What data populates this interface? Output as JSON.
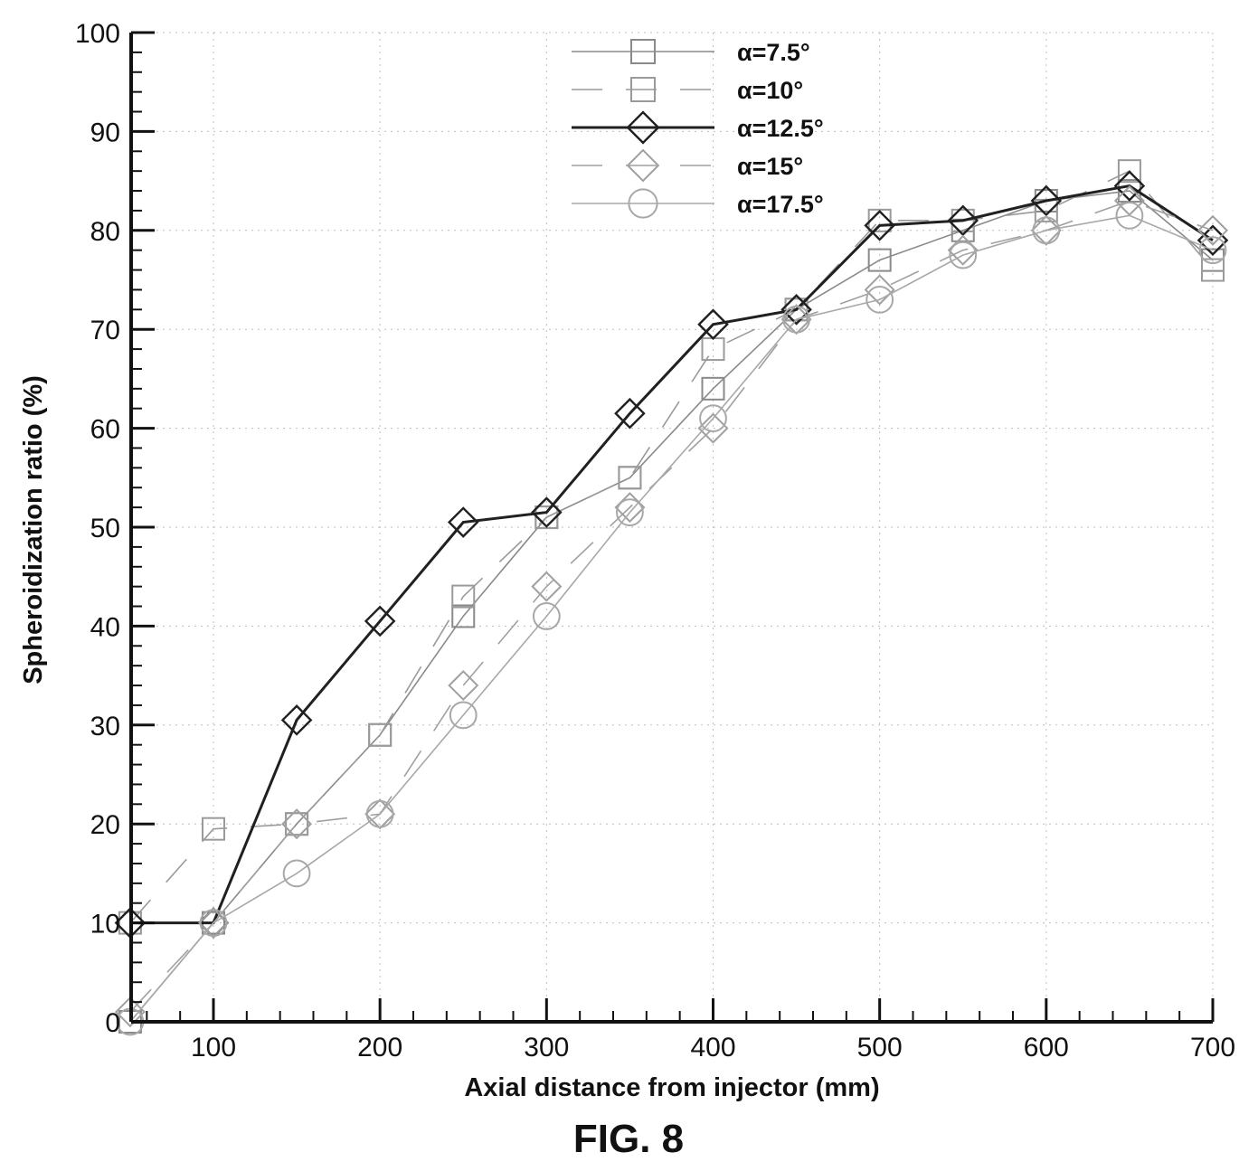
{
  "figure": {
    "caption": "FIG. 8"
  },
  "chart_data": {
    "type": "line",
    "xlabel": "Axial distance from injector (mm)",
    "ylabel": "Spheroidization ratio (%)",
    "xlim": [
      50,
      700
    ],
    "ylim": [
      0,
      100
    ],
    "xticks": [
      100,
      200,
      300,
      400,
      500,
      600,
      700
    ],
    "yticks": [
      0,
      10,
      20,
      30,
      40,
      50,
      60,
      70,
      80,
      90,
      100
    ],
    "grid": true,
    "legend_position": "top-right",
    "x": [
      50,
      100,
      150,
      200,
      250,
      300,
      350,
      400,
      450,
      500,
      550,
      600,
      650,
      700
    ],
    "series": [
      {
        "name": "α=7.5°",
        "marker": "square",
        "line": "solid-thin",
        "color": "#8a8a8a",
        "values": [
          0,
          10,
          20,
          29,
          41,
          51,
          55,
          64,
          72,
          77,
          80,
          83,
          84,
          77
        ]
      },
      {
        "name": "α=10°",
        "marker": "square",
        "line": "dashed",
        "color": "#9a9a9a",
        "values": [
          10,
          19.5,
          20,
          29,
          43,
          51,
          55,
          68,
          72,
          81,
          81,
          82,
          86,
          76
        ]
      },
      {
        "name": "α=12.5°",
        "marker": "diamond",
        "line": "solid-thick",
        "color": "#202020",
        "values": [
          10,
          10,
          30.5,
          40.5,
          50.5,
          51.5,
          61.5,
          70.5,
          72,
          80.5,
          81,
          83,
          84.5,
          79
        ]
      },
      {
        "name": "α=15°",
        "marker": "diamond",
        "line": "dashed",
        "color": "#a0a0a0",
        "values": [
          1,
          10,
          20,
          21,
          34,
          44,
          52,
          60,
          71,
          74,
          78,
          80,
          83,
          80
        ]
      },
      {
        "name": "α=17.5°",
        "marker": "circle",
        "line": "solid-thin",
        "color": "#a8a8a8",
        "values": [
          0,
          10,
          15,
          21,
          31,
          41,
          51.5,
          61,
          71,
          73,
          77.5,
          80,
          81.5,
          78
        ]
      }
    ]
  }
}
